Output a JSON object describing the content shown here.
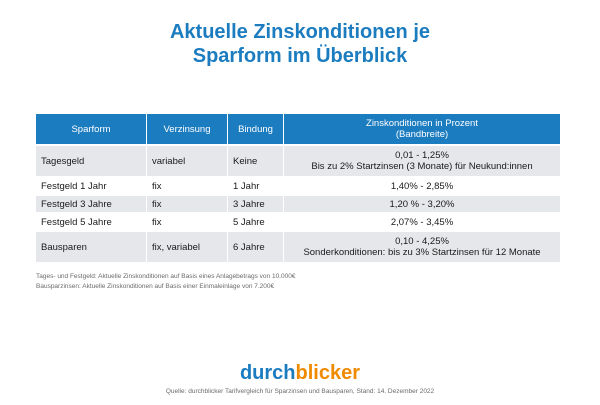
{
  "title": {
    "line1": "Aktuelle Zinskonditionen je",
    "line2": "Sparform im Überblick"
  },
  "table": {
    "headers": {
      "sparform": "Sparform",
      "verzinsung": "Verzinsung",
      "bindung": "Bindung",
      "zins_line1": "Zinskonditionen in Prozent",
      "zins_line2": "(Bandbreite)"
    },
    "rows": [
      {
        "sparform": "Tagesgeld",
        "verzinsung": "variabel",
        "bindung": "Keine",
        "zins_line1": "0,01 - 1,25%",
        "zins_line2": "Bis zu 2% Startzinsen (3 Monate) für Neukund:innen"
      },
      {
        "sparform": "Festgeld 1 Jahr",
        "verzinsung": "fix",
        "bindung": "1 Jahr",
        "zins_line1": "1,40% - 2,85%"
      },
      {
        "sparform": "Festgeld 3 Jahre",
        "verzinsung": "fix",
        "bindung": "3 Jahre",
        "zins_line1": "1,20 % - 3,20%"
      },
      {
        "sparform": "Festgeld 5 Jahre",
        "verzinsung": "fix",
        "bindung": "5 Jahre",
        "zins_line1": "2,07% - 3,45%"
      },
      {
        "sparform": "Bausparen",
        "verzinsung": "fix, variabel",
        "bindung": "6 Jahre",
        "zins_line1": "0,10 - 4,25%",
        "zins_line2": "Sonderkonditionen: bis zu 3% Startzinsen für 12 Monate"
      }
    ]
  },
  "notes": {
    "line1": "Tages- und Festgeld: Aktuelle Zinskonditionen auf Basis eines Anlagebetrags von 10.000€",
    "line2": "Bausparzinsen: Aktuelle Zinskonditionen auf Basis einer Einmaleinlage von 7.200€"
  },
  "logo": {
    "part1": "durch",
    "part2": "blicker"
  },
  "source": "Quelle: durchblicker Tarifvergleich für Sparzinsen und Bausparen, Stand: 14. Dezember 2022",
  "colors": {
    "brand_blue": "#1c7cc0",
    "brand_orange": "#f08a00",
    "row_shade": "#e5e7ea"
  }
}
